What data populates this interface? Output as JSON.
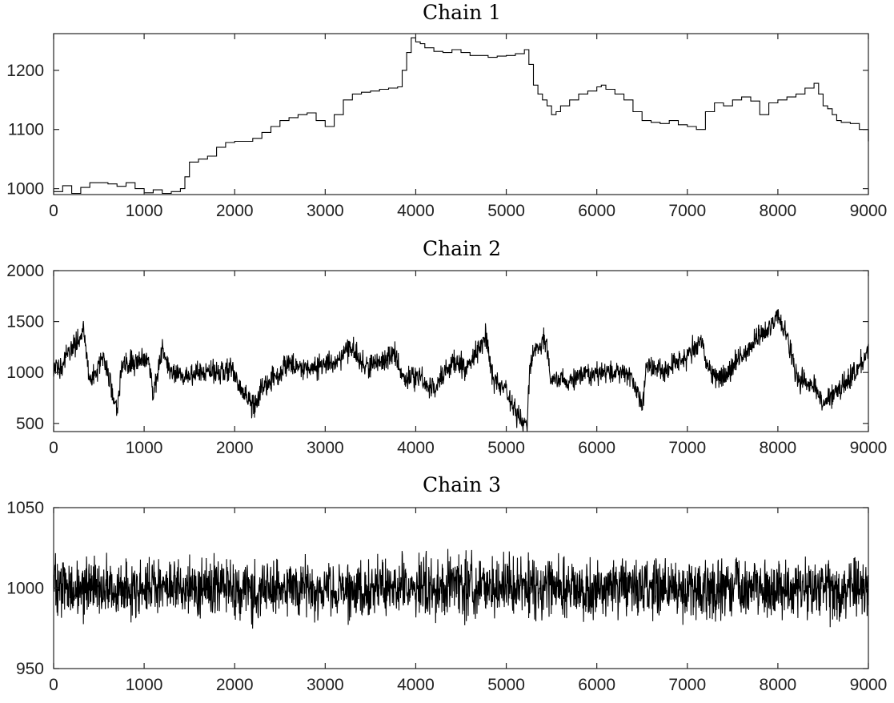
{
  "chart_data": [
    {
      "type": "line",
      "title": "Chain 1",
      "xlabel": "",
      "ylabel": "",
      "xlim": [
        0,
        9000
      ],
      "ylim": [
        990,
        1262
      ],
      "xticks": [
        0,
        1000,
        2000,
        3000,
        4000,
        5000,
        6000,
        7000,
        8000,
        9000
      ],
      "yticks": [
        1000,
        1100,
        1200
      ],
      "grid": false,
      "style": "step",
      "series": [
        {
          "color": "#000000",
          "x": [
            0,
            100,
            200,
            300,
            400,
            600,
            700,
            800,
            900,
            1000,
            1100,
            1200,
            1300,
            1400,
            1450,
            1500,
            1600,
            1700,
            1800,
            1900,
            2000,
            2100,
            2200,
            2300,
            2400,
            2500,
            2600,
            2700,
            2800,
            2900,
            3000,
            3100,
            3200,
            3300,
            3400,
            3500,
            3600,
            3700,
            3800,
            3850,
            3900,
            3950,
            4000,
            4050,
            4100,
            4200,
            4300,
            4400,
            4500,
            4600,
            4700,
            4800,
            4900,
            5000,
            5100,
            5200,
            5250,
            5300,
            5350,
            5400,
            5450,
            5500,
            5550,
            5600,
            5700,
            5800,
            5900,
            6000,
            6050,
            6100,
            6200,
            6300,
            6400,
            6500,
            6600,
            6700,
            6800,
            6900,
            7000,
            7100,
            7200,
            7300,
            7400,
            7500,
            7600,
            7700,
            7800,
            7900,
            8000,
            8100,
            8200,
            8300,
            8400,
            8450,
            8500,
            8550,
            8600,
            8650,
            8700,
            8800,
            8900,
            9000
          ],
          "values": [
            995,
            1005,
            992,
            1002,
            1010,
            1008,
            1004,
            1010,
            1000,
            993,
            998,
            992,
            995,
            1000,
            1020,
            1045,
            1050,
            1055,
            1070,
            1078,
            1080,
            1080,
            1085,
            1095,
            1105,
            1115,
            1120,
            1125,
            1128,
            1115,
            1105,
            1125,
            1150,
            1160,
            1163,
            1165,
            1168,
            1170,
            1172,
            1200,
            1230,
            1255,
            1248,
            1245,
            1238,
            1232,
            1230,
            1235,
            1230,
            1225,
            1225,
            1222,
            1224,
            1225,
            1228,
            1235,
            1210,
            1175,
            1160,
            1150,
            1140,
            1125,
            1130,
            1140,
            1150,
            1160,
            1165,
            1172,
            1175,
            1168,
            1160,
            1150,
            1130,
            1115,
            1112,
            1110,
            1115,
            1108,
            1105,
            1100,
            1130,
            1145,
            1140,
            1150,
            1155,
            1148,
            1125,
            1145,
            1150,
            1155,
            1160,
            1170,
            1178,
            1160,
            1140,
            1135,
            1125,
            1115,
            1112,
            1110,
            1100,
            1080
          ]
        }
      ]
    },
    {
      "type": "line",
      "title": "Chain 2",
      "xlabel": "",
      "ylabel": "",
      "xlim": [
        0,
        9000
      ],
      "ylim": [
        420,
        2000
      ],
      "xticks": [
        0,
        1000,
        2000,
        3000,
        4000,
        5000,
        6000,
        7000,
        8000,
        9000
      ],
      "yticks": [
        500,
        1000,
        1500,
        2000
      ],
      "grid": false,
      "style": "noisy",
      "noise": 70,
      "series": [
        {
          "color": "#000000",
          "x": [
            0,
            150,
            330,
            400,
            550,
            700,
            750,
            850,
            1050,
            1100,
            1200,
            1300,
            1400,
            1600,
            1800,
            1950,
            2050,
            2220,
            2300,
            2500,
            2600,
            2700,
            2900,
            3100,
            3280,
            3450,
            3600,
            3780,
            3850,
            4000,
            4200,
            4400,
            4550,
            4780,
            4850,
            5000,
            5150,
            5230,
            5260,
            5300,
            5420,
            5500,
            5650,
            5900,
            6000,
            6200,
            6400,
            6500,
            6550,
            6700,
            6900,
            7000,
            7150,
            7250,
            7400,
            7600,
            7800,
            8000,
            8100,
            8200,
            8400,
            8500,
            8650,
            8800,
            9000
          ],
          "values": [
            1000,
            1150,
            1420,
            900,
            1150,
            650,
            1050,
            1100,
            1150,
            800,
            1200,
            1000,
            950,
            1000,
            1000,
            1050,
            850,
            650,
            850,
            1000,
            1100,
            1050,
            1050,
            1100,
            1250,
            1050,
            1100,
            1200,
            950,
            950,
            850,
            1100,
            1050,
            1350,
            950,
            800,
            550,
            480,
            1050,
            1200,
            1350,
            950,
            900,
            1000,
            1000,
            1000,
            950,
            650,
            1100,
            1000,
            1100,
            1150,
            1300,
            1000,
            950,
            1150,
            1350,
            1550,
            1400,
            950,
            850,
            700,
            800,
            950,
            1200
          ]
        }
      ]
    },
    {
      "type": "line",
      "title": "Chain 3",
      "xlabel": "",
      "ylabel": "",
      "xlim": [
        0,
        9000
      ],
      "ylim": [
        950,
        1050
      ],
      "xticks": [
        0,
        1000,
        2000,
        3000,
        4000,
        5000,
        6000,
        7000,
        8000,
        9000
      ],
      "yticks": [
        950,
        1000,
        1050
      ],
      "grid": false,
      "style": "noisy",
      "noise": 11,
      "series": [
        {
          "color": "#000000",
          "x": [
            0,
            9000
          ],
          "values": [
            1000,
            1000
          ]
        }
      ]
    }
  ]
}
